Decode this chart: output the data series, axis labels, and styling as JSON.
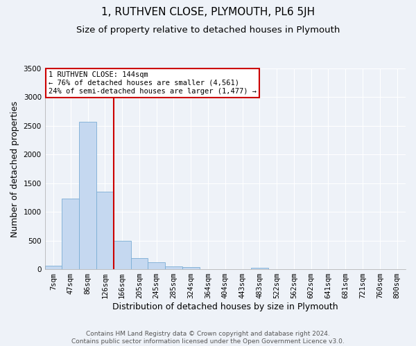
{
  "title": "1, RUTHVEN CLOSE, PLYMOUTH, PL6 5JH",
  "subtitle": "Size of property relative to detached houses in Plymouth",
  "xlabel": "Distribution of detached houses by size in Plymouth",
  "ylabel": "Number of detached properties",
  "bar_labels": [
    "7sqm",
    "47sqm",
    "86sqm",
    "126sqm",
    "166sqm",
    "205sqm",
    "245sqm",
    "285sqm",
    "324sqm",
    "364sqm",
    "404sqm",
    "443sqm",
    "483sqm",
    "522sqm",
    "562sqm",
    "602sqm",
    "641sqm",
    "681sqm",
    "721sqm",
    "760sqm",
    "800sqm"
  ],
  "bar_values": [
    60,
    1230,
    2570,
    1350,
    500,
    200,
    120,
    50,
    40,
    0,
    0,
    0,
    30,
    0,
    0,
    0,
    0,
    0,
    0,
    0,
    0
  ],
  "bar_color": "#c5d8f0",
  "bar_edge_color": "#7aadd4",
  "vline_x_idx": 3,
  "vline_color": "#cc0000",
  "ylim": [
    0,
    3500
  ],
  "yticks": [
    0,
    500,
    1000,
    1500,
    2000,
    2500,
    3000,
    3500
  ],
  "annotation_title": "1 RUTHVEN CLOSE: 144sqm",
  "annotation_line1": "← 76% of detached houses are smaller (4,561)",
  "annotation_line2": "24% of semi-detached houses are larger (1,477) →",
  "annotation_box_color": "#ffffff",
  "annotation_box_edge": "#cc0000",
  "footer1": "Contains HM Land Registry data © Crown copyright and database right 2024.",
  "footer2": "Contains public sector information licensed under the Open Government Licence v3.0.",
  "background_color": "#eef2f8",
  "grid_color": "#ffffff",
  "title_fontsize": 11,
  "subtitle_fontsize": 9.5,
  "axis_label_fontsize": 9,
  "tick_fontsize": 7.5,
  "footer_fontsize": 6.5
}
